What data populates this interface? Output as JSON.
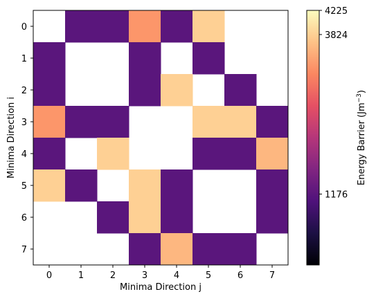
{
  "chart_data": {
    "type": "heatmap",
    "title": "",
    "xlabel": "Minima Direction j",
    "ylabel": "Minima Direction i",
    "x_categories": [
      "0",
      "1",
      "2",
      "3",
      "4",
      "5",
      "6",
      "7"
    ],
    "y_categories": [
      "0",
      "1",
      "2",
      "3",
      "4",
      "5",
      "6",
      "7"
    ],
    "colormap": "magma",
    "vmin": 0,
    "vmax": 4225,
    "values": [
      [
        null,
        1176,
        1176,
        3300,
        1176,
        3824,
        null,
        null
      ],
      [
        1176,
        null,
        null,
        1176,
        null,
        1176,
        null,
        null
      ],
      [
        1176,
        null,
        null,
        1176,
        3824,
        null,
        1176,
        null
      ],
      [
        3300,
        1176,
        1176,
        null,
        null,
        3824,
        3824,
        1176
      ],
      [
        1176,
        null,
        3824,
        null,
        null,
        1176,
        1176,
        3600
      ],
      [
        3824,
        1176,
        null,
        3824,
        1176,
        null,
        null,
        1176
      ],
      [
        null,
        null,
        1176,
        3824,
        1176,
        null,
        null,
        1176
      ],
      [
        null,
        null,
        null,
        1176,
        3600,
        1176,
        1176,
        null
      ]
    ],
    "colorbar": {
      "label": "Energy Barrier (Jm",
      "label_superscript": "−3",
      "label_close": ")",
      "ticks": [
        {
          "value": 4225,
          "label": "4225"
        },
        {
          "value": 3824,
          "label": "3824"
        },
        {
          "value": 1176,
          "label": "1176"
        }
      ]
    },
    "grid": false,
    "legend": "none"
  }
}
